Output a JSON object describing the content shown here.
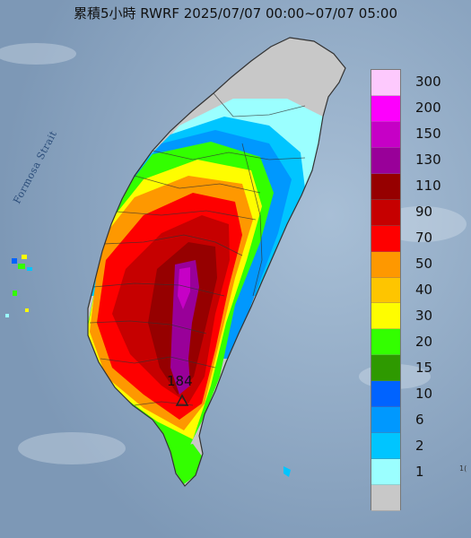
{
  "title": "累積5小時 RWRF 2025/07/07 00:00~07/07 05:00",
  "strait_label": "Formosa Strait",
  "max_value_label": "184",
  "colors": {
    "sea": "#8da7c2",
    "land_no_rain": "#c8c8c8",
    "outline": "#333333"
  },
  "legend": {
    "levels": [
      {
        "label": "300",
        "color": "#fdc9fd"
      },
      {
        "label": "200",
        "color": "#fd00fd"
      },
      {
        "label": "150",
        "color": "#c600c6"
      },
      {
        "label": "130",
        "color": "#990099"
      },
      {
        "label": "110",
        "color": "#960000"
      },
      {
        "label": "90",
        "color": "#c60000"
      },
      {
        "label": "70",
        "color": "#fe0000"
      },
      {
        "label": "50",
        "color": "#fe9800"
      },
      {
        "label": "40",
        "color": "#fec500"
      },
      {
        "label": "30",
        "color": "#fefd00"
      },
      {
        "label": "20",
        "color": "#33ff00"
      },
      {
        "label": "15",
        "color": "#2e9900"
      },
      {
        "label": "10",
        "color": "#0063ff"
      },
      {
        "label": "6",
        "color": "#0098fe"
      },
      {
        "label": "2",
        "color": "#00c5ff"
      },
      {
        "label": "1",
        "color": "#9bffff"
      },
      {
        "label": "",
        "color": "#c8c8c8"
      }
    ]
  },
  "corner_text": "1("
}
